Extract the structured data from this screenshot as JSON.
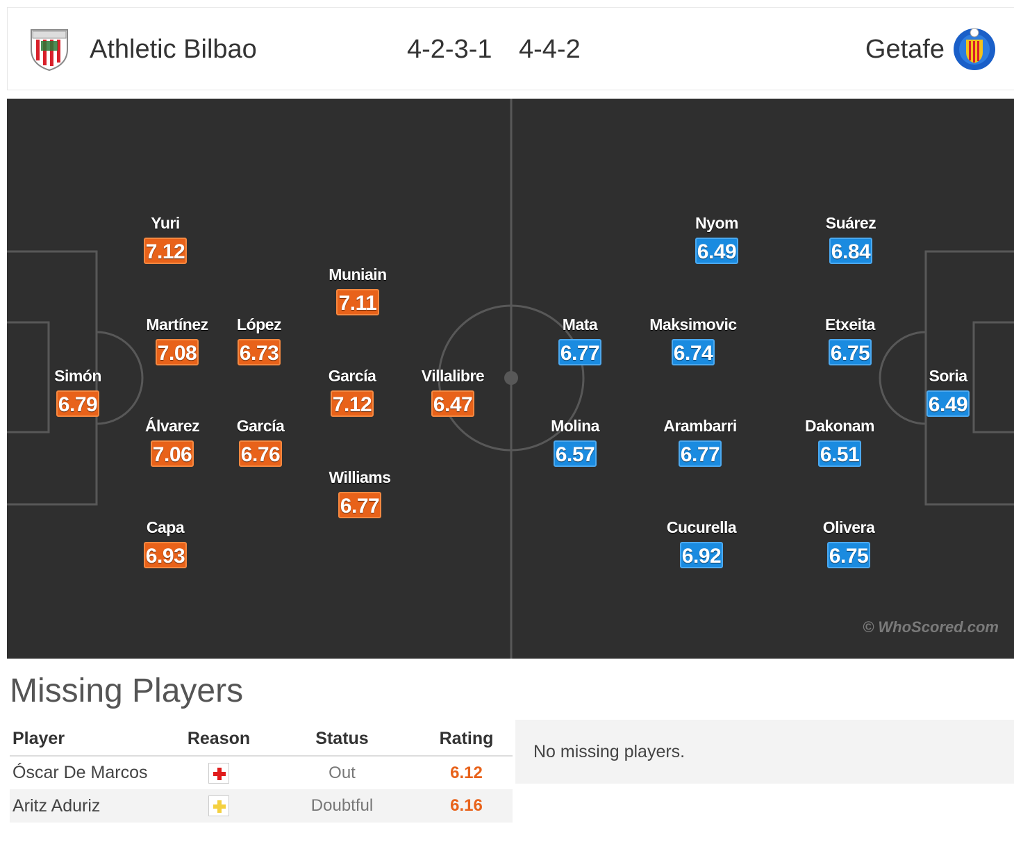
{
  "match": {
    "home": {
      "name": "Athletic Bilbao",
      "formation": "4-2-3-1",
      "color": "#e8621a"
    },
    "away": {
      "name": "Getafe",
      "formation": "4-4-2",
      "color": "#1a8be0"
    }
  },
  "home_players": [
    {
      "name": "Simón",
      "rating": "6.79"
    },
    {
      "name": "Yuri",
      "rating": "7.12"
    },
    {
      "name": "Martínez",
      "rating": "7.08"
    },
    {
      "name": "Álvarez",
      "rating": "7.06"
    },
    {
      "name": "Capa",
      "rating": "6.93"
    },
    {
      "name": "López",
      "rating": "6.73"
    },
    {
      "name": "García",
      "rating": "6.76"
    },
    {
      "name": "Muniain",
      "rating": "7.11"
    },
    {
      "name": "García",
      "rating": "7.12"
    },
    {
      "name": "Williams",
      "rating": "6.77"
    },
    {
      "name": "Villalibre",
      "rating": "6.47"
    }
  ],
  "away_players": [
    {
      "name": "Mata",
      "rating": "6.77"
    },
    {
      "name": "Molina",
      "rating": "6.57"
    },
    {
      "name": "Nyom",
      "rating": "6.49"
    },
    {
      "name": "Maksimovic",
      "rating": "6.74"
    },
    {
      "name": "Arambarri",
      "rating": "6.77"
    },
    {
      "name": "Cucurella",
      "rating": "6.92"
    },
    {
      "name": "Suárez",
      "rating": "6.84"
    },
    {
      "name": "Etxeita",
      "rating": "6.75"
    },
    {
      "name": "Dakonam",
      "rating": "6.51"
    },
    {
      "name": "Olivera",
      "rating": "6.75"
    },
    {
      "name": "Soria",
      "rating": "6.49"
    }
  ],
  "watermark": "© WhoScored.com",
  "missing": {
    "title": "Missing Players",
    "headers": {
      "player": "Player",
      "reason": "Reason",
      "status": "Status",
      "rating": "Rating"
    },
    "rows": [
      {
        "player": "Óscar De Marcos",
        "reason_icon": "injury-red-cross-icon",
        "status": "Out",
        "rating": "6.12"
      },
      {
        "player": "Aritz Aduriz",
        "reason_icon": "injury-yellow-cross-icon",
        "status": "Doubtful",
        "rating": "6.16"
      }
    ],
    "away_message": "No missing players."
  }
}
